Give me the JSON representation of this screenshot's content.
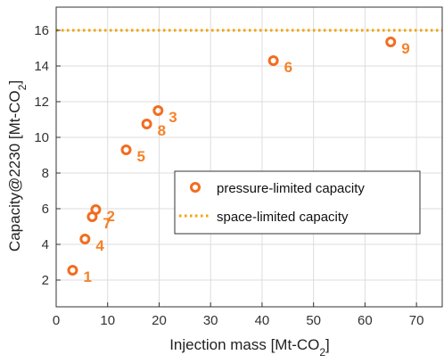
{
  "chart_data": {
    "type": "scatter",
    "xlabel": {
      "main": "Injection mass [Mt-CO",
      "sub": "2",
      "end": "]"
    },
    "ylabel": {
      "main": "Capacity@2230 [Mt-CO",
      "sub": "2",
      "end": "]"
    },
    "xlim": [
      0,
      75
    ],
    "ylim": [
      0.5,
      17.3
    ],
    "xticks": [
      "0",
      "10",
      "20",
      "30",
      "40",
      "50",
      "60",
      "70"
    ],
    "yticks": [
      "2",
      "4",
      "6",
      "8",
      "10",
      "12",
      "14",
      "16"
    ],
    "grid": true,
    "legend_position": "center-right",
    "colors": {
      "marker": "#f26d21",
      "label": "#f5822a",
      "hline": "#f0a400",
      "grid": "#dddddd",
      "axis": "#333333"
    },
    "series": [
      {
        "name": "pressure-limited capacity",
        "marker": "circle-open",
        "points": [
          {
            "label": "1",
            "x": 3.2,
            "y": 2.55
          },
          {
            "label": "2",
            "x": 7.7,
            "y": 5.95
          },
          {
            "label": "3",
            "x": 19.8,
            "y": 11.5
          },
          {
            "label": "4",
            "x": 5.6,
            "y": 4.3
          },
          {
            "label": "5",
            "x": 13.6,
            "y": 9.3
          },
          {
            "label": "6",
            "x": 42.2,
            "y": 14.3
          },
          {
            "label": "7",
            "x": 7.0,
            "y": 5.55
          },
          {
            "label": "8",
            "x": 17.6,
            "y": 10.75
          },
          {
            "label": "9",
            "x": 65.0,
            "y": 15.35
          }
        ]
      },
      {
        "name": "space-limited capacity",
        "style": "dotted-horizontal-line",
        "y": 16.0
      }
    ]
  }
}
